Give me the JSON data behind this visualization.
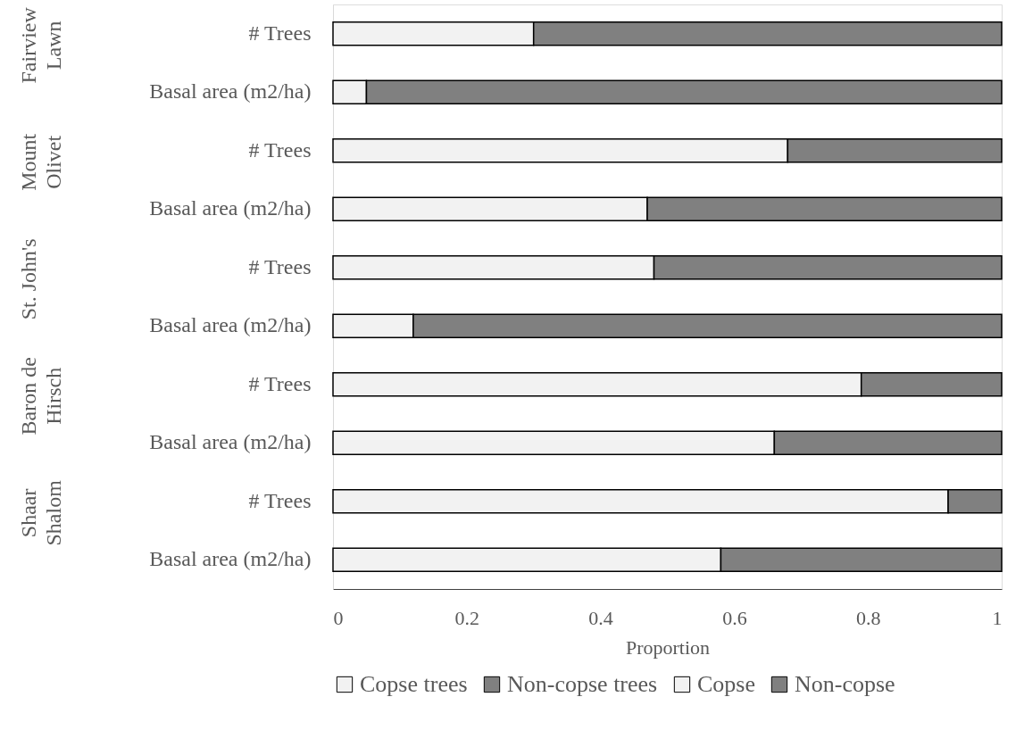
{
  "chart_data": {
    "type": "bar",
    "orientation": "horizontal",
    "stacked": true,
    "categories": [
      "# Trees",
      "Basal area (m2/ha)",
      "# Trees",
      "Basal area (m2/ha)",
      "# Trees",
      "Basal area (m2/ha)",
      "# Trees",
      "Basal area (m2/ha)",
      "# Trees",
      "Basal area (m2/ha)"
    ],
    "annotations": [
      "Fairview\nLawn",
      "Mount\nOlivet",
      "St. John's",
      "Baron de\nHirsch",
      "Shaar\nShalom"
    ],
    "series": [
      {
        "name": "Copse trees",
        "color": "#f2f2f2",
        "values": [
          0.3,
          null,
          0.68,
          null,
          0.48,
          null,
          0.79,
          null,
          0.92,
          null
        ]
      },
      {
        "name": "Non-copse trees",
        "color": "#808080",
        "values": [
          0.7,
          null,
          0.32,
          null,
          0.52,
          null,
          0.21,
          null,
          0.08,
          null
        ]
      },
      {
        "name": "Copse",
        "color": "#f2f2f2",
        "values": [
          null,
          0.05,
          null,
          0.47,
          null,
          0.12,
          null,
          0.66,
          null,
          0.58
        ]
      },
      {
        "name": "Non-copse",
        "color": "#808080",
        "values": [
          null,
          0.95,
          null,
          0.53,
          null,
          0.88,
          null,
          0.34,
          null,
          0.42
        ]
      }
    ],
    "xlabel": "Proportion",
    "xlim": [
      0,
      1
    ],
    "xticks": [
      0,
      0.2,
      0.4,
      0.6,
      0.8,
      1
    ],
    "grid": false,
    "legend": "bottom"
  }
}
